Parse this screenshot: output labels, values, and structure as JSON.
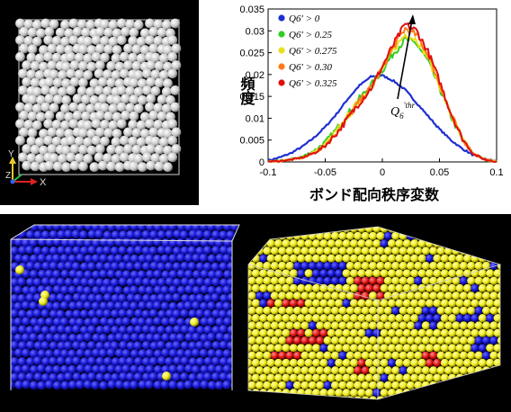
{
  "top_left": {
    "axis_y": "Y",
    "axis_z": "Z",
    "axis_x": "X"
  },
  "chart_data": {
    "type": "line",
    "xlabel": "ボンド配向秩序変数",
    "ylabel": "頻度",
    "xlim": [
      -0.1,
      0.1
    ],
    "ylim": [
      0,
      0.035
    ],
    "xticks": [
      "-0.1",
      "-0.05",
      "0",
      "0.05",
      "0.1"
    ],
    "yticks": [
      "0",
      "0.005",
      "0.01",
      "0.015",
      "0.02",
      "0.025",
      "0.03",
      "0.035"
    ],
    "legend_position": "top-left",
    "annotation": "Q6′thr",
    "series": [
      {
        "name": "Q6′ > 0",
        "color": "#1f2fd0",
        "x": [
          -0.1,
          -0.09,
          -0.08,
          -0.07,
          -0.06,
          -0.05,
          -0.04,
          -0.03,
          -0.02,
          -0.01,
          0,
          0.01,
          0.02,
          0.03,
          0.04,
          0.05,
          0.06,
          0.07,
          0.08,
          0.09,
          0.1
        ],
        "values": [
          0.0003,
          0.001,
          0.002,
          0.0035,
          0.0055,
          0.008,
          0.011,
          0.0145,
          0.0175,
          0.0195,
          0.0198,
          0.0185,
          0.0165,
          0.0135,
          0.0105,
          0.0075,
          0.005,
          0.003,
          0.0015,
          0.0006,
          0.0002
        ]
      },
      {
        "name": "Q6′ > 0.25",
        "color": "#33cc22",
        "x": [
          -0.1,
          -0.09,
          -0.08,
          -0.07,
          -0.06,
          -0.05,
          -0.04,
          -0.03,
          -0.02,
          -0.01,
          0,
          0.01,
          0.02,
          0.03,
          0.04,
          0.05,
          0.06,
          0.07,
          0.08,
          0.09,
          0.1
        ],
        "values": [
          0.0001,
          0.0002,
          0.0006,
          0.0012,
          0.0025,
          0.0045,
          0.0075,
          0.011,
          0.0145,
          0.0175,
          0.021,
          0.025,
          0.028,
          0.027,
          0.023,
          0.017,
          0.0105,
          0.005,
          0.0018,
          0.0005,
          0.0001
        ]
      },
      {
        "name": "Q6′ > 0.275",
        "color": "#e8e020",
        "x": [
          -0.1,
          -0.09,
          -0.08,
          -0.07,
          -0.06,
          -0.05,
          -0.04,
          -0.03,
          -0.02,
          -0.01,
          0,
          0.01,
          0.02,
          0.03,
          0.04,
          0.05,
          0.06,
          0.07,
          0.08,
          0.09,
          0.1
        ],
        "values": [
          0.0001,
          0.0002,
          0.0005,
          0.001,
          0.0022,
          0.004,
          0.007,
          0.0105,
          0.014,
          0.0172,
          0.0212,
          0.0258,
          0.0292,
          0.028,
          0.0238,
          0.0175,
          0.0108,
          0.0052,
          0.0018,
          0.0005,
          0.0001
        ]
      },
      {
        "name": "Q6′ > 0.30",
        "color": "#ff7a1a",
        "x": [
          -0.1,
          -0.09,
          -0.08,
          -0.07,
          -0.06,
          -0.05,
          -0.04,
          -0.03,
          -0.02,
          -0.01,
          0,
          0.01,
          0.02,
          0.03,
          0.04,
          0.05,
          0.06,
          0.07,
          0.08,
          0.09,
          0.1
        ],
        "values": [
          0.0001,
          0.0002,
          0.0005,
          0.001,
          0.002,
          0.0038,
          0.0068,
          0.0102,
          0.0138,
          0.017,
          0.0215,
          0.0265,
          0.0305,
          0.029,
          0.0245,
          0.018,
          0.011,
          0.0052,
          0.0018,
          0.0005,
          0.0001
        ]
      },
      {
        "name": "Q6′ > 0.325",
        "color": "#e01010",
        "x": [
          -0.1,
          -0.09,
          -0.08,
          -0.07,
          -0.06,
          -0.05,
          -0.04,
          -0.03,
          -0.02,
          -0.01,
          0,
          0.01,
          0.02,
          0.03,
          0.04,
          0.05,
          0.06,
          0.07,
          0.08,
          0.09,
          0.1
        ],
        "values": [
          0.0001,
          0.0002,
          0.0005,
          0.001,
          0.002,
          0.0037,
          0.0066,
          0.01,
          0.0136,
          0.0168,
          0.0218,
          0.027,
          0.0315,
          0.03,
          0.0252,
          0.0185,
          0.0112,
          0.0053,
          0.0018,
          0.0005,
          0.0001
        ]
      }
    ]
  },
  "colors": {
    "blue_particle": "#1a1ad8",
    "yellow_particle": "#f2ee22",
    "red_particle": "#e01818",
    "white_particle": "#d8d8d8"
  }
}
